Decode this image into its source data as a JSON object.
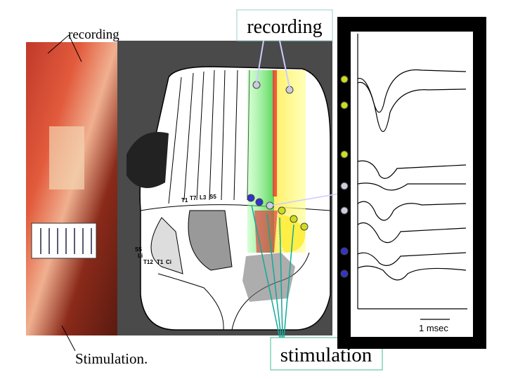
{
  "labels": {
    "recording_left": "recording",
    "recording_box": "recording",
    "stimulation_left": "Stimulation.",
    "stimulation_box": "stimulation",
    "scale": "1 msec"
  },
  "diagram_labels": [
    "T1",
    "T7",
    "L3",
    "S5",
    "S5",
    "Li",
    "T12",
    "T1",
    "Ci"
  ]
}
